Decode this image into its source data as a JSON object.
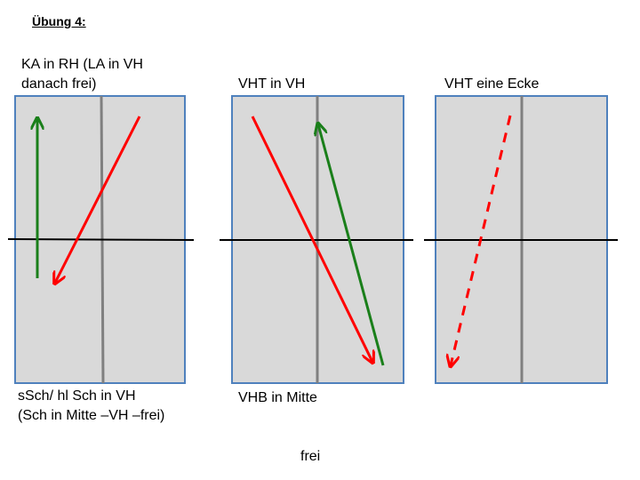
{
  "title": "Übung 4:",
  "labels": {
    "top_1_line1": "KA in RH (LA in VH",
    "top_1_line2": "danach frei)",
    "top_2": "VHT in VH",
    "top_3": "VHT eine Ecke",
    "bottom_1_line1": "sSch/ hl Sch in VH",
    "bottom_1_line2": "(Sch in Mitte –VH –frei)",
    "bottom_2": "VHB in Mitte",
    "bottom_3": "frei"
  },
  "colors": {
    "court_fill": "#d9d9d9",
    "court_border": "#4f81bd",
    "center_line": "#808080",
    "net": "#000000",
    "green_arrow": "#1a7f1a",
    "red_arrow": "#ff0000"
  },
  "arrows": {
    "court_1": [
      "green solid arrow",
      "red solid arrow"
    ],
    "court_2": [
      "red solid arrow",
      "green solid arrow"
    ],
    "court_3": [
      "red dashed arrow"
    ]
  }
}
